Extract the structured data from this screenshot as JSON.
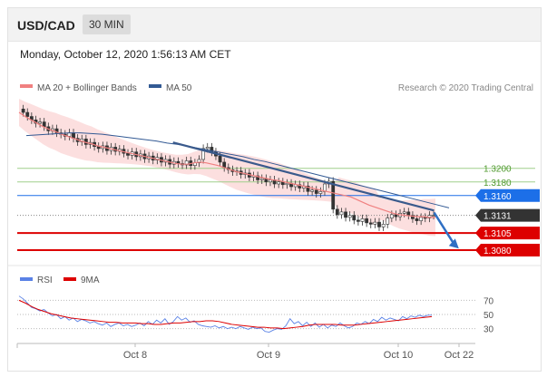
{
  "header": {
    "symbol": "USD/CAD",
    "timeframe": "30 MIN"
  },
  "datetime": "Monday, October 12, 2020 1:56:13 AM CET",
  "legend": {
    "ma_label": "MA 20 + Bollinger Bands",
    "ma50_label": "MA 50",
    "copyright": "Research © 2020 Trading Central"
  },
  "colors": {
    "ma20": "#f08080",
    "bands": "#fbd9d9",
    "ma50": "#335a94",
    "support": "#dd0000",
    "resistance_green": "#9fcf8c",
    "pivot_blue": "#1c6fe8",
    "current": "#333333",
    "rsi": "#5a82e6",
    "rsi_ma": "#dd0000"
  },
  "chart_data": [
    {
      "type": "line",
      "name": "price",
      "ylim": [
        1.3064,
        1.3298
      ],
      "x_tick_labels": [
        "Oct 8",
        "Oct 9",
        "Oct 10",
        "Oct 22"
      ],
      "levels": [
        {
          "value": 1.32,
          "label": "1.3200",
          "kind": "resistance"
        },
        {
          "value": 1.318,
          "label": "1.3180",
          "kind": "resistance"
        },
        {
          "value": 1.316,
          "label": "1.3160",
          "kind": "pivot"
        },
        {
          "value": 1.3131,
          "label": "1.3131",
          "kind": "last"
        },
        {
          "value": 1.3105,
          "label": "1.3105",
          "kind": "support"
        },
        {
          "value": 1.308,
          "label": "1.3080",
          "kind": "support"
        }
      ],
      "trendline": [
        [
          0.34,
          1.3238
        ],
        [
          0.91,
          1.3138
        ]
      ],
      "forecast_arrow": [
        [
          0.91,
          1.3135
        ],
        [
          0.96,
          1.3085
        ]
      ],
      "series": [
        {
          "name": "Close",
          "values": [
            1.3287,
            1.3282,
            1.3276,
            1.3271,
            1.3266,
            1.3268,
            1.3261,
            1.3255,
            1.3258,
            1.3252,
            1.325,
            1.3247,
            1.3252,
            1.3244,
            1.3239,
            1.3243,
            1.3235,
            1.3238,
            1.3232,
            1.3229,
            1.3233,
            1.3226,
            1.3231,
            1.3225,
            1.3228,
            1.3222,
            1.3219,
            1.3224,
            1.3217,
            1.3221,
            1.3214,
            1.3218,
            1.3212,
            1.3216,
            1.3209,
            1.3213,
            1.3206,
            1.321,
            1.3207,
            1.3205,
            1.3211,
            1.3204,
            1.3208,
            1.3213,
            1.3229,
            1.3231,
            1.3224,
            1.3218,
            1.3209,
            1.3201,
            1.3198,
            1.3195,
            1.3196,
            1.3191,
            1.3193,
            1.3187,
            1.3189,
            1.3183,
            1.3185,
            1.318,
            1.3183,
            1.3177,
            1.318,
            1.3176,
            1.3178,
            1.3173,
            1.3176,
            1.3171,
            1.3174,
            1.3166,
            1.3168,
            1.3163,
            1.3166,
            1.3177,
            1.3181,
            1.314,
            1.3132,
            1.3136,
            1.3128,
            1.3131,
            1.3124,
            1.3122,
            1.3126,
            1.312,
            1.3118,
            1.3121,
            1.3114,
            1.3118,
            1.3127,
            1.3132,
            1.3129,
            1.3134,
            1.3136,
            1.3131,
            1.3126,
            1.3123,
            1.3128,
            1.3127,
            1.3131,
            1.3131
          ]
        },
        {
          "name": "MA 20",
          "values": [
            1.3282,
            1.3276,
            1.3271,
            1.3266,
            1.3261,
            1.3257,
            1.3254,
            1.325,
            1.3247,
            1.3244,
            1.3241,
            1.3238,
            1.3236,
            1.3233,
            1.3231,
            1.3229,
            1.3227,
            1.3225,
            1.3223,
            1.3221,
            1.3219,
            1.3217,
            1.3215,
            1.3213,
            1.3211,
            1.3209,
            1.3207,
            1.3206,
            1.3206,
            1.3208,
            1.3209,
            1.3208,
            1.3206,
            1.3204,
            1.3201,
            1.3198,
            1.3195,
            1.3193,
            1.3191,
            1.3189,
            1.3187,
            1.3185,
            1.3183,
            1.3182,
            1.318,
            1.3178,
            1.3176,
            1.3174,
            1.3172,
            1.317,
            1.3168,
            1.3166,
            1.3164,
            1.3162,
            1.316,
            1.3158,
            1.3154,
            1.315,
            1.3146,
            1.3143,
            1.314,
            1.3137,
            1.3134,
            1.3132,
            1.3131,
            1.313,
            1.3129,
            1.3129,
            1.3128,
            1.3128
          ]
        },
        {
          "name": "MA 50",
          "values": [
            1.3248,
            1.3249,
            1.325,
            1.3251,
            1.3252,
            1.3252,
            1.3251,
            1.325,
            1.3248,
            1.3246,
            1.3244,
            1.3242,
            1.324,
            1.3237,
            1.3235,
            1.3232,
            1.3229,
            1.3226,
            1.3223,
            1.322,
            1.3217,
            1.3213,
            1.321,
            1.3206,
            1.3202,
            1.3198,
            1.3194,
            1.319,
            1.3186,
            1.3182,
            1.3178,
            1.3174,
            1.317,
            1.3166,
            1.3162,
            1.3158,
            1.3154,
            1.315,
            1.3146,
            1.3142
          ]
        }
      ]
    },
    {
      "type": "line",
      "name": "RSI",
      "ylim": [
        18,
        82
      ],
      "y_ticks": [
        70,
        50,
        30
      ],
      "legend": [
        "RSI",
        "9MA"
      ],
      "series": [
        {
          "name": "RSI",
          "values": [
            76,
            72,
            66,
            60,
            58,
            55,
            57,
            52,
            48,
            50,
            44,
            47,
            42,
            45,
            40,
            43,
            41,
            38,
            40,
            37,
            35,
            38,
            33,
            36,
            38,
            34,
            36,
            33,
            35,
            38,
            34,
            40,
            36,
            42,
            38,
            44,
            36,
            40,
            47,
            42,
            45,
            39,
            41,
            36,
            34,
            33,
            32,
            34,
            31,
            33,
            30,
            32,
            30,
            33,
            31,
            29,
            32,
            30,
            31,
            26,
            25,
            28,
            30,
            29,
            34,
            44,
            37,
            40,
            34,
            39,
            33,
            38,
            32,
            36,
            31,
            35,
            33,
            38,
            34,
            31,
            33,
            38,
            36,
            40,
            37,
            43,
            40,
            46,
            42,
            45,
            43,
            41,
            47,
            44,
            48,
            46,
            49,
            47,
            49,
            49
          ]
        },
        {
          "name": "9MA",
          "values": [
            70,
            66,
            61,
            57,
            54,
            51,
            49,
            47,
            45,
            44,
            43,
            42,
            41,
            40,
            39,
            39,
            38,
            38,
            38,
            37,
            37,
            36,
            36,
            37,
            38,
            38,
            39,
            40,
            40,
            41,
            41,
            40,
            38,
            36,
            35,
            34,
            33,
            32,
            32,
            31,
            31,
            30,
            31,
            32,
            33,
            35,
            36,
            36,
            36,
            36,
            35,
            35,
            35,
            36,
            37,
            38,
            39,
            40,
            41,
            42,
            43,
            44,
            45,
            46,
            47
          ]
        }
      ]
    }
  ]
}
